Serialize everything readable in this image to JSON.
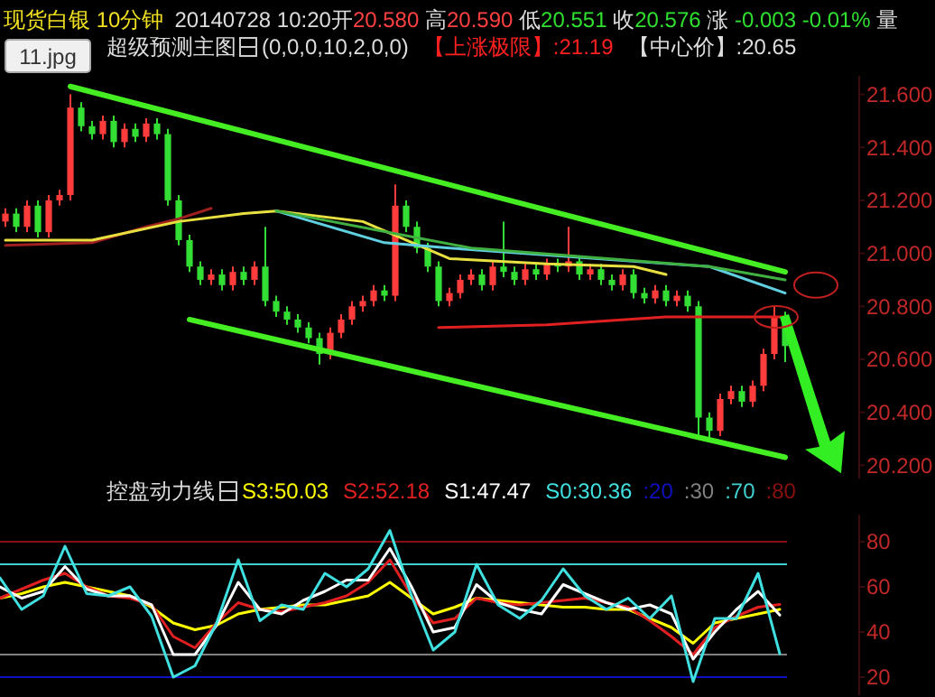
{
  "chart_data": [
    {
      "type": "candlestick",
      "title": "现货白银 10分钟",
      "subtitle": "超级预测主图",
      "annotations": [
        "20140728 10:20开",
        "20.580",
        " 高",
        "20.590",
        " 低",
        "20.551",
        " 收",
        "20.576",
        " 涨 ",
        "-0.003 -0.01%",
        " 量",
        "(0,0,0,10,2,0,0)",
        "【上涨极限】:21.19",
        "【中心价】:20.65",
        "11.jpg"
      ],
      "categories": [
        null,
        null,
        null,
        null,
        null,
        null,
        null,
        null,
        null,
        null,
        null,
        null,
        null,
        null,
        null,
        null,
        null,
        null,
        null,
        null,
        null,
        null,
        null,
        null,
        null,
        null,
        null,
        null,
        null,
        null,
        null,
        null,
        null,
        null,
        null,
        null,
        null,
        null,
        null,
        null,
        null,
        null,
        null,
        null,
        null,
        null,
        null,
        null,
        null,
        null,
        null,
        null,
        null,
        null,
        null,
        null,
        null,
        null,
        null,
        null,
        null,
        null,
        null,
        null,
        null,
        null,
        null,
        null,
        null,
        null,
        null,
        null,
        null
      ],
      "ylim": [
        20.15,
        21.67
      ],
      "tick_labels": "y",
      "yticks": [
        {
          "value": 20.2,
          "label": "20.200"
        },
        {
          "value": 20.4,
          "label": "20.400"
        },
        {
          "value": 20.6,
          "label": "20.600"
        },
        {
          "value": 20.8,
          "label": "20.800"
        },
        {
          "value": 21.0,
          "label": "21.000"
        },
        {
          "value": 21.2,
          "label": "21.200"
        },
        {
          "value": 21.4,
          "label": "21.400"
        },
        {
          "value": 21.6,
          "label": "21.600"
        }
      ],
      "series": [
        {
          "colors": [
            "#ff3b3b",
            "#33dd33",
            "#ff3b3b",
            "#33dd33",
            "#ff3b3b",
            "#ff3b3b",
            "#ff3b3b",
            "#33dd33",
            "#33dd33",
            "#ff3b3b",
            "#33dd33",
            "#ff3b3b",
            "#33dd33",
            "#ff3b3b",
            "#33dd33",
            "#33dd33",
            "#33dd33",
            "#33dd33",
            "#33dd33",
            "#ff3b3b",
            "#33dd33",
            "#ff3b3b",
            "#33dd33",
            "#ff3b3b",
            "#33dd33",
            "#33dd33",
            "#33dd33",
            "#33dd33",
            "#33dd33",
            "#33dd33",
            "#ff3b3b",
            "#ff3b3b",
            "#ff3b3b",
            "#ff3b3b",
            "#ff3b3b",
            "#33dd33",
            "#ff3b3b",
            "#33dd33",
            "#33dd33",
            "#33dd33",
            "#33dd33",
            "#ff3b3b",
            "#ff3b3b",
            "#ff3b3b",
            "#33dd33",
            "#ff3b3b",
            "#33dd33",
            "#33dd33",
            "#ff3b3b",
            "#33dd33",
            "#ff3b3b",
            "#33dd33",
            "#ff3b3b",
            "#33dd33",
            "#ff3b3b",
            "#33dd33",
            "#33dd33",
            "#ff3b3b",
            "#33dd33",
            "#33dd33",
            "#ff3b3b",
            "#33dd33",
            "#ff3b3b",
            "#33dd33",
            "#33dd33",
            "#33dd33",
            "#ff3b3b",
            "#ff3b3b",
            "#33dd33",
            "#ff3b3b",
            "#ff3b3b",
            "#ff3b3b",
            "#33dd33"
          ],
          "ohlc": [
            [
              21.12,
              21.17,
              21.1,
              21.15
            ],
            [
              21.15,
              21.17,
              21.08,
              21.1
            ],
            [
              21.1,
              21.2,
              21.08,
              21.18
            ],
            [
              21.18,
              21.2,
              21.06,
              21.08
            ],
            [
              21.08,
              21.22,
              21.06,
              21.2
            ],
            [
              21.2,
              21.24,
              21.18,
              21.22
            ],
            [
              21.22,
              21.6,
              21.2,
              21.55
            ],
            [
              21.55,
              21.57,
              21.46,
              21.48
            ],
            [
              21.48,
              21.5,
              21.43,
              21.45
            ],
            [
              21.45,
              21.52,
              21.43,
              21.5
            ],
            [
              21.5,
              21.52,
              21.4,
              21.42
            ],
            [
              21.42,
              21.49,
              21.4,
              21.47
            ],
            [
              21.47,
              21.49,
              21.42,
              21.44
            ],
            [
              21.44,
              21.51,
              21.42,
              21.49
            ],
            [
              21.49,
              21.51,
              21.43,
              21.45
            ],
            [
              21.45,
              21.47,
              21.18,
              21.2
            ],
            [
              21.2,
              21.22,
              21.03,
              21.05
            ],
            [
              21.05,
              21.07,
              20.93,
              20.95
            ],
            [
              20.95,
              20.97,
              20.88,
              20.9
            ],
            [
              20.9,
              20.94,
              20.88,
              20.92
            ],
            [
              20.92,
              20.94,
              20.86,
              20.88
            ],
            [
              20.88,
              20.95,
              20.86,
              20.93
            ],
            [
              20.93,
              20.95,
              20.88,
              20.9
            ],
            [
              20.9,
              20.97,
              20.88,
              20.95
            ],
            [
              20.95,
              21.1,
              20.8,
              20.82
            ],
            [
              20.82,
              20.84,
              20.76,
              20.78
            ],
            [
              20.78,
              20.8,
              20.73,
              20.75
            ],
            [
              20.75,
              20.77,
              20.7,
              20.72
            ],
            [
              20.72,
              20.74,
              20.66,
              20.68
            ],
            [
              20.68,
              20.7,
              20.58,
              20.62
            ],
            [
              20.62,
              20.72,
              20.6,
              20.7
            ],
            [
              20.7,
              20.77,
              20.68,
              20.75
            ],
            [
              20.75,
              20.82,
              20.73,
              20.8
            ],
            [
              20.8,
              20.84,
              20.78,
              20.82
            ],
            [
              20.82,
              20.88,
              20.8,
              20.86
            ],
            [
              20.86,
              20.88,
              20.82,
              20.84
            ],
            [
              20.84,
              21.26,
              20.82,
              21.18
            ],
            [
              21.18,
              21.2,
              21.08,
              21.1
            ],
            [
              21.1,
              21.12,
              21.0,
              21.02
            ],
            [
              21.02,
              21.04,
              20.93,
              20.95
            ],
            [
              20.95,
              20.97,
              20.8,
              20.82
            ],
            [
              20.82,
              20.87,
              20.8,
              20.85
            ],
            [
              20.85,
              20.92,
              20.83,
              20.9
            ],
            [
              20.9,
              20.94,
              20.88,
              20.92
            ],
            [
              20.92,
              20.94,
              20.86,
              20.88
            ],
            [
              20.88,
              20.97,
              20.86,
              20.95
            ],
            [
              20.95,
              21.12,
              20.91,
              20.93
            ],
            [
              20.93,
              20.95,
              20.88,
              20.9
            ],
            [
              20.9,
              20.96,
              20.88,
              20.94
            ],
            [
              20.94,
              20.96,
              20.9,
              20.92
            ],
            [
              20.92,
              20.98,
              20.9,
              20.96
            ],
            [
              20.96,
              20.98,
              20.93,
              20.95
            ],
            [
              20.95,
              21.1,
              20.93,
              20.97
            ],
            [
              20.97,
              20.99,
              20.9,
              20.92
            ],
            [
              20.92,
              20.96,
              20.9,
              20.94
            ],
            [
              20.94,
              20.96,
              20.88,
              20.9
            ],
            [
              20.9,
              20.92,
              20.86,
              20.88
            ],
            [
              20.88,
              20.94,
              20.86,
              20.92
            ],
            [
              20.92,
              20.94,
              20.83,
              20.85
            ],
            [
              20.85,
              20.87,
              20.81,
              20.83
            ],
            [
              20.83,
              20.88,
              20.81,
              20.86
            ],
            [
              20.86,
              20.88,
              20.8,
              20.82
            ],
            [
              20.82,
              20.86,
              20.8,
              20.84
            ],
            [
              20.84,
              20.86,
              20.78,
              20.8
            ],
            [
              20.8,
              20.82,
              20.3,
              20.38
            ],
            [
              20.38,
              20.4,
              20.3,
              20.33
            ],
            [
              20.33,
              20.47,
              20.31,
              20.45
            ],
            [
              20.45,
              20.5,
              20.43,
              20.48
            ],
            [
              20.48,
              20.5,
              20.42,
              20.44
            ],
            [
              20.44,
              20.52,
              20.42,
              20.5
            ],
            [
              20.5,
              20.64,
              20.48,
              20.62
            ],
            [
              20.62,
              20.8,
              20.6,
              20.76
            ],
            [
              20.76,
              20.78,
              20.59,
              20.65
            ]
          ]
        },
        {
          "type": "line",
          "color": "#a02020",
          "values": [
            21.03,
            null,
            null,
            null,
            null,
            null,
            null,
            null,
            21.04,
            null,
            null,
            null,
            null,
            21.1,
            null,
            null,
            21.13,
            null,
            null,
            21.17,
            null,
            null,
            null,
            null,
            null,
            null,
            null,
            null,
            null,
            null,
            null,
            null,
            null,
            null,
            null,
            null,
            null,
            null,
            null,
            null,
            null,
            null,
            null,
            null,
            null,
            null,
            null,
            null,
            null,
            null,
            null,
            null,
            null,
            null,
            null,
            null,
            null,
            null,
            null,
            null,
            null,
            null,
            null,
            null,
            null,
            null,
            null,
            null,
            null,
            null,
            null,
            null,
            null
          ]
        },
        {
          "type": "line",
          "color": "#e8e040",
          "values": [
            21.05,
            null,
            null,
            null,
            null,
            null,
            null,
            null,
            21.05,
            null,
            null,
            null,
            null,
            null,
            null,
            null,
            21.12,
            null,
            null,
            null,
            null,
            null,
            21.15,
            null,
            null,
            21.16,
            null,
            null,
            null,
            null,
            null,
            null,
            null,
            21.12,
            null,
            null,
            null,
            null,
            null,
            null,
            null,
            20.98,
            null,
            null,
            null,
            null,
            null,
            null,
            null,
            null,
            20.96,
            null,
            null,
            null,
            null,
            null,
            null,
            null,
            20.95,
            null,
            null,
            20.92,
            null,
            null,
            null,
            null,
            null,
            null,
            null,
            null,
            null,
            null,
            null
          ]
        },
        {
          "type": "line",
          "color": "#60d0e0",
          "values": [
            null,
            null,
            null,
            null,
            null,
            null,
            null,
            null,
            null,
            null,
            null,
            null,
            null,
            null,
            null,
            null,
            null,
            null,
            null,
            null,
            null,
            null,
            null,
            null,
            null,
            21.16,
            null,
            null,
            null,
            null,
            null,
            null,
            null,
            null,
            null,
            21.04,
            null,
            null,
            null,
            null,
            null,
            21.02,
            null,
            null,
            null,
            null,
            null,
            null,
            null,
            null,
            null,
            null,
            null,
            null,
            null,
            null,
            null,
            null,
            null,
            null,
            null,
            null,
            null,
            null,
            null,
            20.95,
            null,
            null,
            null,
            null,
            null,
            null,
            20.85
          ]
        },
        {
          "type": "line",
          "color": "#40b040",
          "values": [
            null,
            null,
            null,
            null,
            null,
            null,
            null,
            null,
            null,
            null,
            null,
            null,
            null,
            null,
            null,
            null,
            null,
            null,
            null,
            null,
            null,
            null,
            null,
            null,
            null,
            21.16,
            null,
            null,
            null,
            null,
            null,
            null,
            null,
            null,
            null,
            null,
            null,
            null,
            null,
            null,
            null,
            null,
            null,
            21.02,
            null,
            null,
            null,
            null,
            null,
            null,
            null,
            null,
            null,
            null,
            null,
            null,
            null,
            null,
            null,
            null,
            null,
            null,
            null,
            null,
            null,
            20.95,
            null,
            null,
            null,
            null,
            null,
            null,
            20.9
          ]
        },
        {
          "type": "line",
          "color": "#e02020",
          "values": [
            null,
            null,
            null,
            null,
            null,
            null,
            null,
            null,
            null,
            null,
            null,
            null,
            null,
            null,
            null,
            null,
            null,
            null,
            null,
            null,
            null,
            null,
            null,
            null,
            null,
            null,
            null,
            null,
            null,
            null,
            null,
            null,
            null,
            null,
            null,
            null,
            null,
            null,
            null,
            null,
            20.72,
            null,
            null,
            null,
            null,
            null,
            null,
            null,
            null,
            null,
            20.73,
            null,
            null,
            null,
            null,
            null,
            null,
            null,
            null,
            null,
            null,
            20.76,
            null,
            null,
            null,
            null,
            null,
            null,
            null,
            null,
            null,
            null,
            20.76
          ]
        },
        {
          "type": "line",
          "color": "#44ee22",
          "values": [
            null,
            null,
            null,
            null,
            null,
            null,
            21.63,
            null,
            null,
            null,
            null,
            null,
            null,
            null,
            null,
            null,
            null,
            null,
            null,
            null,
            null,
            null,
            null,
            null,
            null,
            null,
            null,
            null,
            null,
            null,
            null,
            null,
            null,
            null,
            null,
            null,
            null,
            null,
            null,
            null,
            null,
            null,
            null,
            null,
            null,
            null,
            null,
            null,
            null,
            null,
            null,
            null,
            null,
            null,
            null,
            null,
            null,
            null,
            null,
            null,
            null,
            null,
            null,
            null,
            null,
            null,
            null,
            null,
            null,
            null,
            null,
            null,
            20.93
          ]
        },
        {
          "type": "line",
          "color": "#44ee22",
          "values": [
            null,
            null,
            null,
            null,
            null,
            null,
            null,
            null,
            null,
            null,
            null,
            null,
            null,
            null,
            null,
            null,
            null,
            20.75,
            null,
            null,
            null,
            null,
            null,
            null,
            null,
            null,
            null,
            null,
            null,
            null,
            null,
            null,
            null,
            null,
            null,
            null,
            null,
            null,
            null,
            null,
            null,
            null,
            null,
            null,
            null,
            null,
            null,
            null,
            null,
            null,
            null,
            null,
            null,
            null,
            null,
            null,
            null,
            null,
            null,
            null,
            null,
            null,
            null,
            null,
            null,
            null,
            null,
            null,
            null,
            null,
            null,
            null,
            20.23
          ]
        }
      ]
    },
    {
      "type": "line",
      "title": "控盘动力线",
      "legend": "top",
      "ylim": [
        12,
        92
      ],
      "tick_labels": "y",
      "yticks": [
        20,
        40,
        60,
        80
      ],
      "categories": [
        null,
        null,
        null,
        null,
        null,
        null,
        null,
        null,
        null,
        null,
        null,
        null,
        null,
        null,
        null,
        null,
        null,
        null,
        null,
        null,
        null,
        null,
        null,
        null,
        null,
        null,
        null,
        null,
        null,
        null,
        null,
        null,
        null,
        null,
        null,
        null,
        null
      ],
      "ref_lines": [
        {
          "axis": "y",
          "value": 20,
          "label": ":20",
          "color": "#1010c0"
        },
        {
          "axis": "y",
          "value": 30,
          "label": ":30",
          "color": "#808080"
        },
        {
          "axis": "y",
          "value": 70,
          "label": ":70",
          "color": "#40d0d0"
        },
        {
          "axis": "y",
          "value": 80,
          "label": ":80",
          "color": "#8a1010"
        }
      ],
      "series": [
        {
          "name": "S3:50.03",
          "color": "#ffff00",
          "values": [
            55,
            57,
            60,
            62,
            60,
            58,
            56,
            51,
            44,
            41,
            43,
            48,
            50,
            51,
            52,
            52,
            54,
            56,
            62,
            55,
            48,
            51,
            55,
            54,
            53,
            52,
            51,
            51,
            50,
            50,
            46,
            42,
            35,
            44,
            46,
            48,
            50.03
          ]
        },
        {
          "name": "S2:52.18",
          "color": "#e02020",
          "values": [
            55,
            59,
            63,
            66,
            60,
            56,
            55,
            52,
            38,
            33,
            44,
            53,
            50,
            49,
            51,
            53,
            56,
            62,
            72,
            56,
            44,
            46,
            55,
            53,
            52,
            53,
            54,
            55,
            53,
            51,
            45,
            38,
            30,
            42,
            47,
            51,
            52.18
          ]
        },
        {
          "name": "S1:47.47",
          "color": "#ffffff",
          "values": [
            60,
            55,
            58,
            69,
            59,
            56,
            56,
            52,
            30,
            30,
            43,
            62,
            50,
            48,
            54,
            58,
            63,
            63,
            77,
            60,
            40,
            42,
            61,
            53,
            50,
            48,
            61,
            57,
            53,
            50,
            52,
            48,
            28,
            40,
            50,
            58,
            47.47
          ]
        },
        {
          "name": "S0:30.36",
          "color": "#40e0e0",
          "values": [
            64,
            50,
            56,
            78,
            57,
            56,
            60,
            47,
            20,
            25,
            44,
            72,
            45,
            52,
            50,
            66,
            60,
            68,
            85,
            56,
            32,
            40,
            70,
            52,
            46,
            54,
            68,
            56,
            50,
            55,
            46,
            56,
            18,
            46,
            46,
            66,
            30.36
          ]
        }
      ]
    }
  ]
}
